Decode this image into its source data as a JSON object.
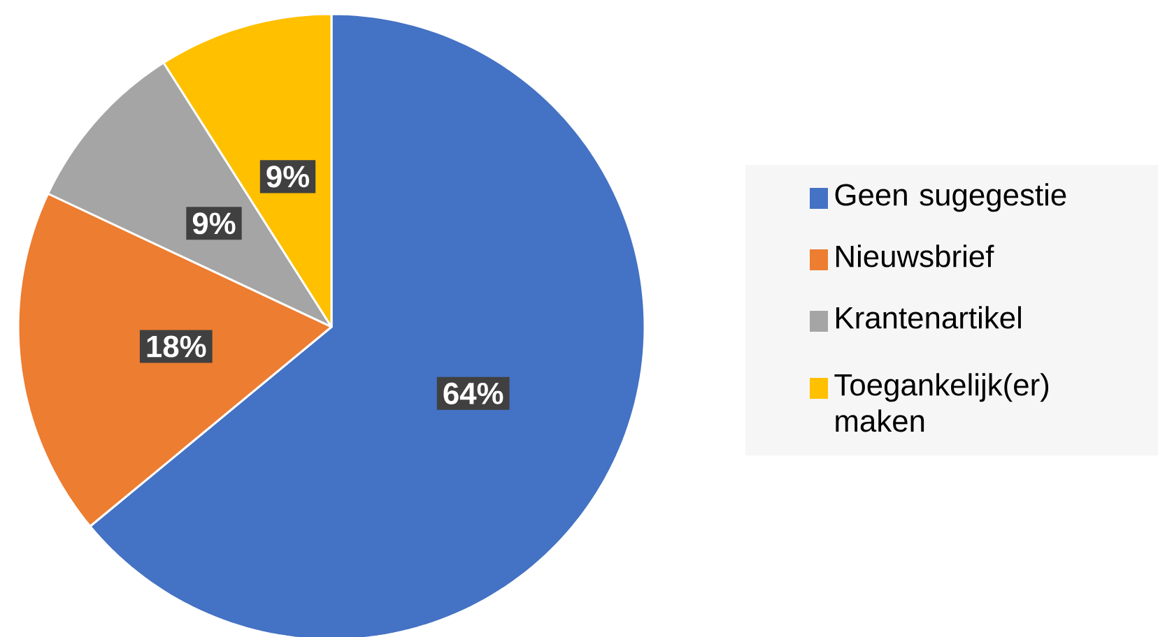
{
  "chart_data": {
    "type": "pie",
    "categories": [
      "Geen sugegestie",
      "Nieuwsbrief",
      "Krantenartikel",
      "Toegankelijk(er) maken"
    ],
    "values": [
      64,
      18,
      9,
      9
    ],
    "colors": [
      "#4472c4",
      "#ed7d31",
      "#a5a5a5",
      "#ffc000"
    ],
    "value_labels": [
      "64%",
      "18%",
      "9%",
      "9%"
    ],
    "legend": "right"
  }
}
